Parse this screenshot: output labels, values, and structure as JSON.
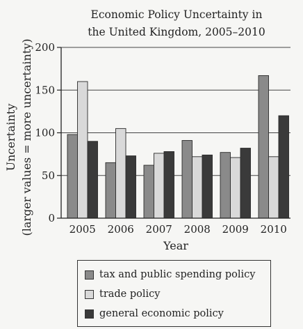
{
  "chart_data": {
    "type": "bar",
    "title": [
      "Economic Policy Uncertainty in",
      "the United Kingdom, 2005–2010"
    ],
    "xlabel": "Year",
    "ylabel": [
      "Uncertainty",
      "(larger values = more uncertainty)"
    ],
    "categories": [
      "2005",
      "2006",
      "2007",
      "2008",
      "2009",
      "2010"
    ],
    "ylim": [
      0,
      200
    ],
    "yticks": [
      0,
      50,
      100,
      150,
      200
    ],
    "grid": true,
    "legend_position": "bottom",
    "series": [
      {
        "name": "tax and public spending policy",
        "color": "#8a8a8a",
        "values": [
          98,
          65,
          62,
          91,
          77,
          167
        ]
      },
      {
        "name": "trade policy",
        "color": "#d9d9d9",
        "values": [
          160,
          105,
          76,
          72,
          71,
          72
        ]
      },
      {
        "name": "general economic policy",
        "color": "#3a3a3a",
        "values": [
          90,
          73,
          78,
          74,
          82,
          120
        ]
      }
    ]
  }
}
